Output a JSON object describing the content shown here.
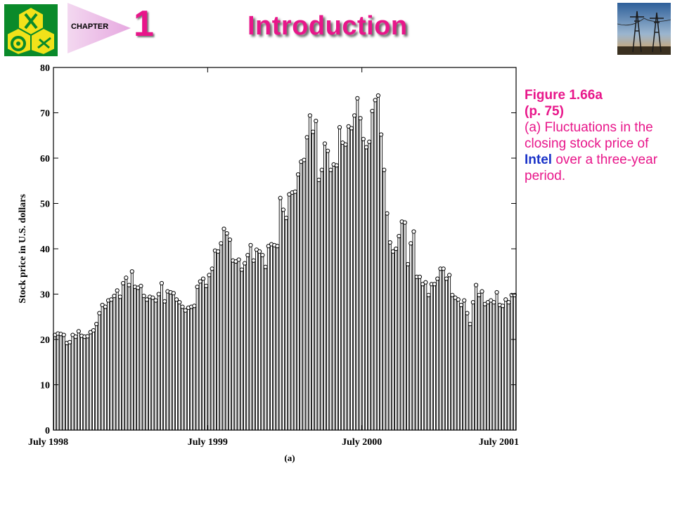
{
  "header": {
    "chapter_label": "CHAPTER",
    "chapter_number": "1",
    "title": "Introduction",
    "accent_color": "#e8168a",
    "logo_icon": "engineering-emblem-icon",
    "photo_icon": "power-lines-photo-icon"
  },
  "caption": {
    "figure": "Figure 1.66a",
    "page": "(p. 75)",
    "text_before": "(a) Fluctuations in the closing stock price of ",
    "highlight": "Intel",
    "text_after": " over a three-year period.",
    "highlight_color": "#1a33c8"
  },
  "chart_data": {
    "type": "bar",
    "subtype": "stem-with-circle-markers",
    "title": "",
    "sublabel": "(a)",
    "xlabel": "",
    "ylabel": "Stock price in U.S. dollars",
    "x_ticks": [
      "July 1998",
      "July 1999",
      "July 2000",
      "July 2001"
    ],
    "ylim": [
      0,
      80
    ],
    "y_ticks": [
      0,
      10,
      20,
      30,
      40,
      50,
      60,
      70,
      80
    ],
    "grid": false,
    "values": [
      21.0,
      21.3,
      21.2,
      21.0,
      19.2,
      19.4,
      21.0,
      20.6,
      21.8,
      20.8,
      20.6,
      20.7,
      21.6,
      22.0,
      23.4,
      25.8,
      27.6,
      27.2,
      28.6,
      28.8,
      29.6,
      30.8,
      29.4,
      32.4,
      33.6,
      32.0,
      35.0,
      31.6,
      31.4,
      31.8,
      29.6,
      28.8,
      29.4,
      29.2,
      28.6,
      30.0,
      32.4,
      28.4,
      30.6,
      30.4,
      30.2,
      28.8,
      28.2,
      27.2,
      26.4,
      27.0,
      27.2,
      27.4,
      31.6,
      32.8,
      33.4,
      31.8,
      34.2,
      35.6,
      39.6,
      39.4,
      41.2,
      44.4,
      43.4,
      42.0,
      37.4,
      37.2,
      37.6,
      35.4,
      36.8,
      38.6,
      40.8,
      37.4,
      39.8,
      39.4,
      38.6,
      36.0,
      40.6,
      41.0,
      40.8,
      40.6,
      51.2,
      48.6,
      46.8,
      52.0,
      52.4,
      52.6,
      56.4,
      59.2,
      59.6,
      64.6,
      69.4,
      65.8,
      68.2,
      55.2,
      57.4,
      63.2,
      61.6,
      57.4,
      58.6,
      58.4,
      66.8,
      63.4,
      63.0,
      67.0,
      66.6,
      69.4,
      73.2,
      68.8,
      64.2,
      62.4,
      63.6,
      70.4,
      72.8,
      73.8,
      65.2,
      57.4,
      47.8,
      41.4,
      39.4,
      40.0,
      42.8,
      46.0,
      45.8,
      36.6,
      41.2,
      43.8,
      33.8,
      33.8,
      32.2,
      32.6,
      29.8,
      32.2,
      32.2,
      33.4,
      35.6,
      35.6,
      33.4,
      34.2,
      29.8,
      29.2,
      28.8,
      27.6,
      28.6,
      25.8,
      23.4,
      28.2,
      32.0,
      29.8,
      30.6,
      27.8,
      28.2,
      28.6,
      28.2,
      30.4,
      27.6,
      27.4,
      28.8,
      28.2,
      29.8,
      29.8
    ]
  }
}
